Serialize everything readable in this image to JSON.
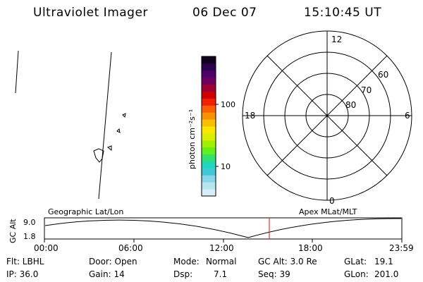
{
  "header": {
    "title": "Ultraviolet Imager",
    "date": "06 Dec 07",
    "time": "15:10:45 UT"
  },
  "colorbar": {
    "label": "photon cm⁻²s⁻¹",
    "ticks": [
      "100",
      "10"
    ],
    "colors": [
      "#d8f0f8",
      "#b8e4f0",
      "#88d4e8",
      "#40c8d8",
      "#20d8c0",
      "#30e070",
      "#60f020",
      "#a0f000",
      "#d8f000",
      "#f8e800",
      "#f8c000",
      "#f89000",
      "#f86000",
      "#f02000",
      "#d00000",
      "#a00030",
      "#700060",
      "#50006a",
      "#300050",
      "#100020"
    ]
  },
  "polar": {
    "labels": {
      "top": "12",
      "bottom": "0",
      "left": "18",
      "right": "6",
      "ring60": "60",
      "ring70": "70",
      "ring80": "80"
    }
  },
  "timeline": {
    "left_label": "Geographic Lat/Lon",
    "right_label": "Apex MLat/MLT",
    "yaxis_label": "GC Alt",
    "ytick_top": "9.0",
    "ytick_bottom": "1.8",
    "xticks": [
      "00:00",
      "06:00",
      "12:00",
      "18:00",
      "23:59"
    ],
    "marker_color": "#ff0000"
  },
  "info": {
    "flt": "Flt: LBHL",
    "ip": "IP: 36.0",
    "door": "Door: Open",
    "gain": "Gain: 14",
    "mode_label": "Mode:",
    "mode_value": "Normal",
    "dsp_label": "Dsp:",
    "dsp_value": "7.1",
    "gcalt": "GC Alt: 3.0 Re",
    "seq": "Seq: 39",
    "glat_label": "GLat:",
    "glat_value": "19.1",
    "glon_label": "GLon:",
    "glon_value": "201.0"
  }
}
